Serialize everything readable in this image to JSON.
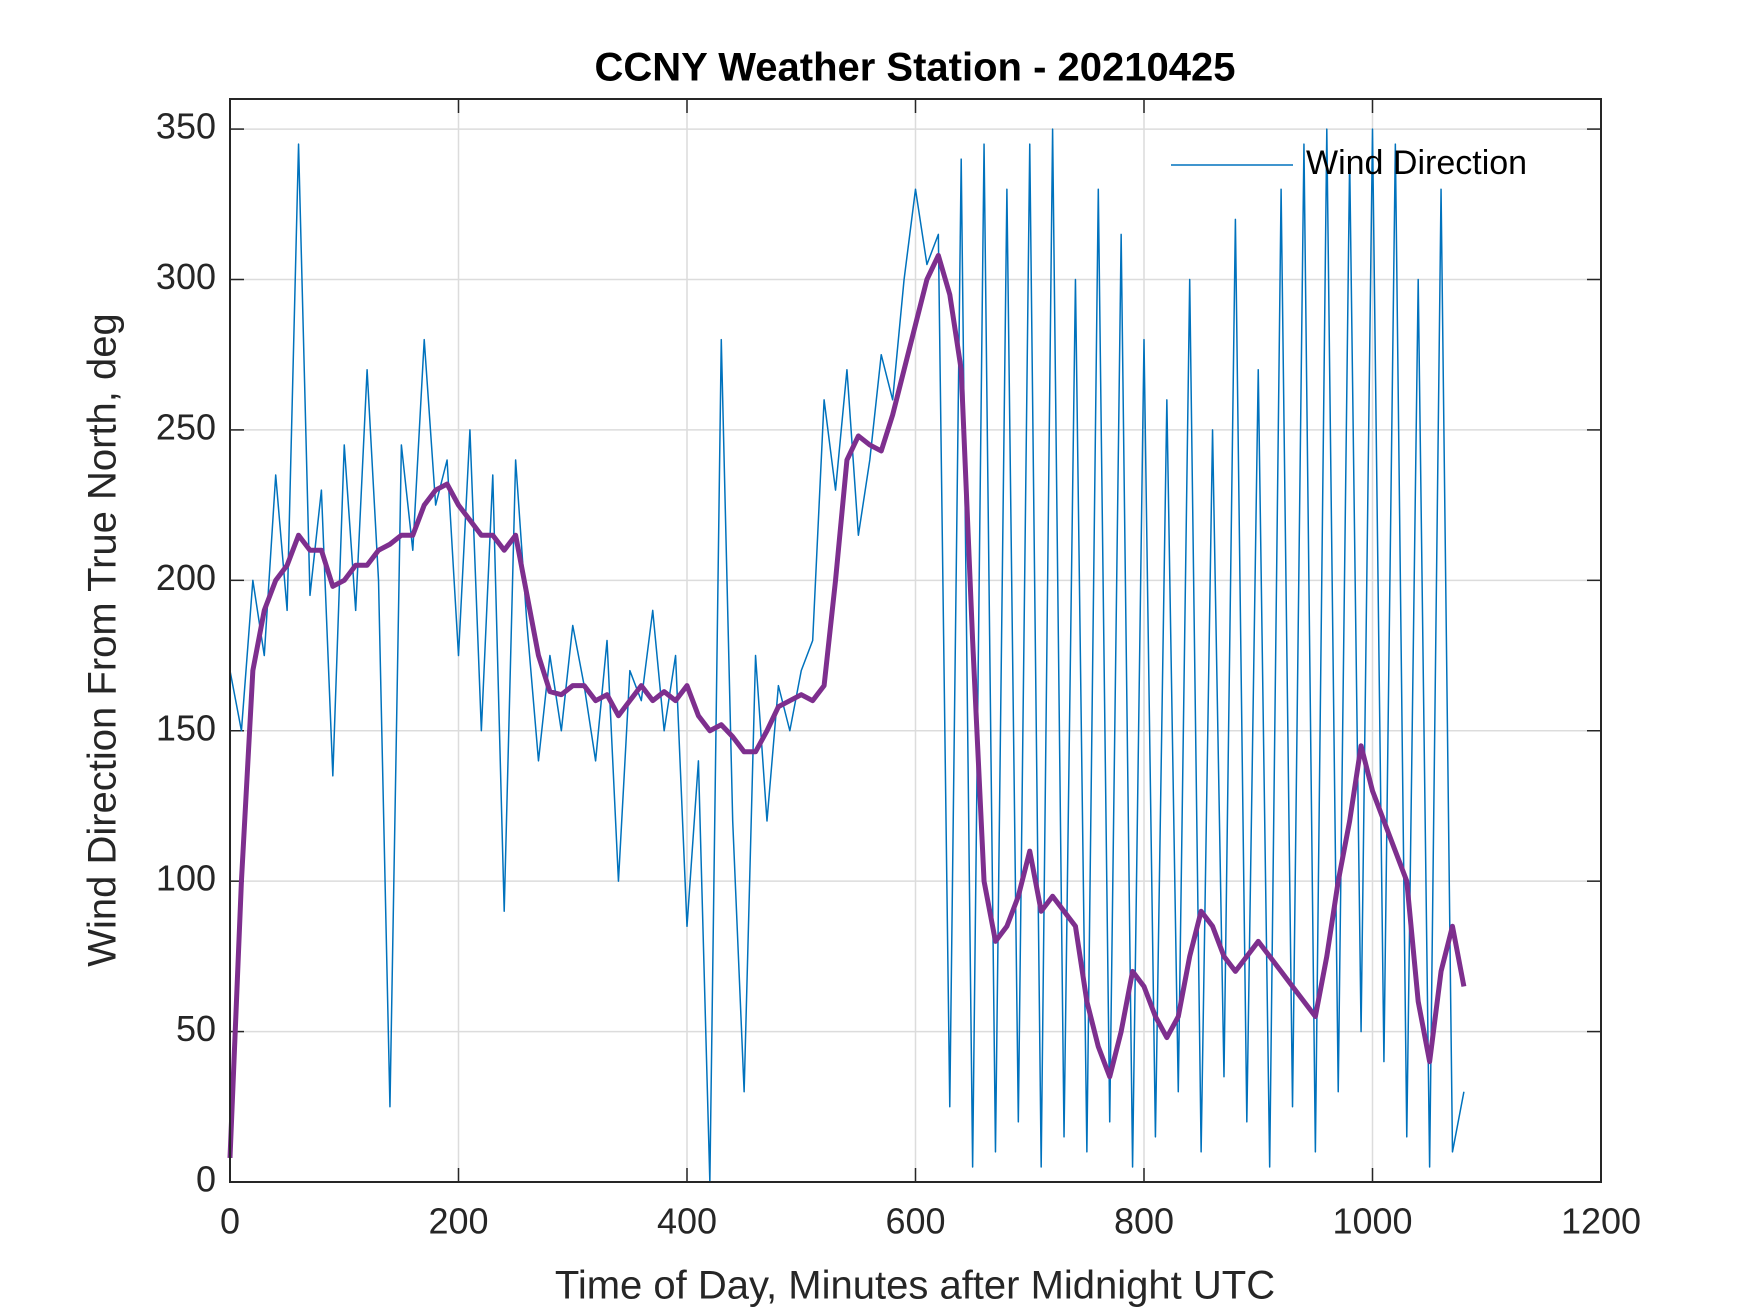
{
  "chart_data": {
    "type": "line",
    "title": "CCNY Weather Station - 20210425",
    "xlabel": "Time of Day, Minutes after Midnight UTC",
    "ylabel": "Wind Direction From True North, deg",
    "xlim": [
      0,
      1200
    ],
    "ylim": [
      0,
      360
    ],
    "xticks": [
      0,
      200,
      400,
      600,
      800,
      1000,
      1200
    ],
    "yticks": [
      0,
      50,
      100,
      150,
      200,
      250,
      300,
      350
    ],
    "grid": true,
    "legend": "top-right",
    "x": [
      0,
      10,
      20,
      30,
      40,
      50,
      60,
      70,
      80,
      90,
      100,
      110,
      120,
      130,
      140,
      150,
      160,
      170,
      180,
      190,
      200,
      210,
      220,
      230,
      240,
      250,
      260,
      270,
      280,
      290,
      300,
      310,
      320,
      330,
      340,
      350,
      360,
      370,
      380,
      390,
      400,
      410,
      420,
      430,
      440,
      450,
      460,
      470,
      480,
      490,
      500,
      510,
      520,
      530,
      540,
      550,
      560,
      570,
      580,
      590,
      600,
      610,
      620,
      630,
      640,
      650,
      660,
      670,
      680,
      690,
      700,
      710,
      720,
      730,
      740,
      750,
      760,
      770,
      780,
      790,
      800,
      810,
      820,
      830,
      840,
      850,
      860,
      870,
      880,
      890,
      900,
      910,
      920,
      930,
      940,
      950,
      960,
      970,
      980,
      990,
      1000,
      1010,
      1020,
      1030,
      1040,
      1050,
      1060,
      1070,
      1080
    ],
    "series": [
      {
        "name": "Wind Direction",
        "color": "#0072bd",
        "width": 1.5,
        "values": [
          170,
          150,
          200,
          175,
          235,
          190,
          345,
          195,
          230,
          135,
          245,
          190,
          270,
          200,
          25,
          245,
          210,
          280,
          225,
          240,
          175,
          250,
          150,
          235,
          90,
          240,
          185,
          140,
          175,
          150,
          185,
          165,
          140,
          180,
          100,
          170,
          160,
          190,
          150,
          175,
          85,
          140,
          0,
          280,
          120,
          30,
          175,
          120,
          165,
          150,
          170,
          180,
          260,
          230,
          270,
          215,
          240,
          275,
          260,
          300,
          330,
          305,
          315,
          25,
          340,
          5,
          345,
          10,
          330,
          20,
          345,
          5,
          350,
          15,
          300,
          10,
          330,
          20,
          315,
          5,
          280,
          15,
          260,
          30,
          300,
          10,
          250,
          35,
          320,
          20,
          270,
          5,
          330,
          25,
          345,
          10,
          350,
          30,
          340,
          50,
          350,
          40,
          345,
          15,
          300,
          5,
          330,
          10,
          30
        ]
      },
      {
        "color": "#7e2f8e",
        "width": 5,
        "values": [
          8,
          100,
          170,
          190,
          200,
          205,
          215,
          210,
          210,
          198,
          200,
          205,
          205,
          210,
          212,
          215,
          215,
          225,
          230,
          232,
          225,
          220,
          215,
          215,
          210,
          215,
          195,
          175,
          163,
          162,
          165,
          165,
          160,
          162,
          155,
          160,
          165,
          160,
          163,
          160,
          165,
          155,
          150,
          152,
          148,
          143,
          143,
          150,
          158,
          160,
          162,
          160,
          165,
          200,
          240,
          248,
          245,
          243,
          255,
          270,
          285,
          300,
          308,
          295,
          270,
          180,
          100,
          80,
          85,
          95,
          110,
          90,
          95,
          90,
          85,
          60,
          45,
          35,
          50,
          70,
          65,
          55,
          48,
          55,
          75,
          90,
          85,
          75,
          70,
          75,
          80,
          75,
          70,
          65,
          60,
          55,
          75,
          100,
          120,
          145,
          130,
          120,
          110,
          100,
          60,
          40,
          70,
          85,
          65
        ]
      }
    ]
  }
}
